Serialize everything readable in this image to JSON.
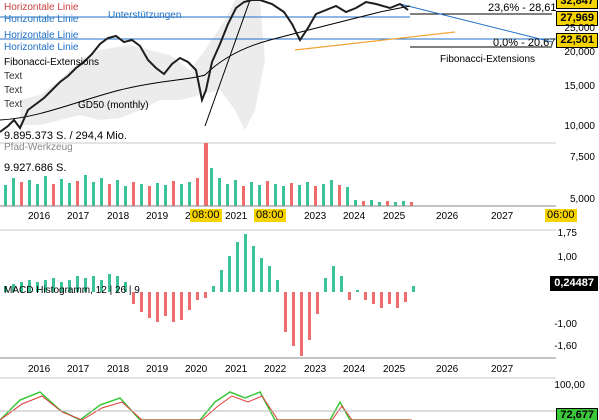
{
  "colors": {
    "up": "#3cc29a",
    "down": "#f06b6b",
    "line": "#1f6fc4",
    "fib": "#f3a536",
    "time_bg": "#f5d300",
    "tag_yellow": "#f5d300",
    "macd_tag": "#000000"
  },
  "overlay": {
    "horiz_lines": [
      "Horizontale Linie",
      "Horizontale Linie",
      "Horizontale Linie",
      "Horizontale Linie"
    ],
    "support_label": "Unterstützungen",
    "fib_ext_label": "Fibonacci-Extensions",
    "fib_ext_label_right": "Fibonacci-Extensions",
    "text_labels": [
      "Text",
      "Text",
      "Text"
    ],
    "gd50": "GD50 (monthly)",
    "volume_top": "9.895.373 S. / 294,4 Mio.",
    "pfad": "Pfad-Werkzeug",
    "volume_bottom": "9.927.686 S."
  },
  "fib_levels": {
    "level_236": "23,6% - 28,61",
    "level_0": "0,0% - 20,67"
  },
  "price_axis": {
    "tag_top": "32,847",
    "tag_current": "27,969",
    "tag_level": "22,501",
    "labels": [
      "25,000",
      "20,000",
      "15,000",
      "10,000",
      "7,500",
      "5,000"
    ]
  },
  "x_axis": {
    "years_top": [
      "2016",
      "2017",
      "2018",
      "2019",
      "2020",
      "2021",
      "2022",
      "2023",
      "2024",
      "2025",
      "2026",
      "2027"
    ],
    "time_labels": [
      "08:00",
      "08:00",
      "06:00"
    ],
    "years_bottom": [
      "2016",
      "2017",
      "2018",
      "2019",
      "2020",
      "2021",
      "2022",
      "2023",
      "2024",
      "2025",
      "2026",
      "2027"
    ]
  },
  "macd": {
    "label": "MACD Histogramm, 12 | 26 | 9",
    "current": "0,24487",
    "axis": [
      "1,75",
      "1,00",
      "-1,00",
      "-1,60"
    ]
  },
  "rsi": {
    "axis_top": "100,00",
    "current": "72,677"
  }
}
